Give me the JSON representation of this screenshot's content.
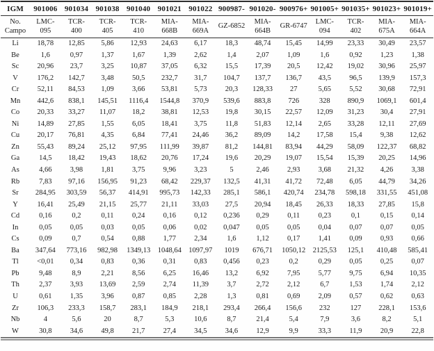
{
  "table": {
    "name": "trace-element-geochemistry-table",
    "header_row_igm": [
      "IGM",
      "901006",
      "901034",
      "901038",
      "901040",
      "901021",
      "901022",
      "900987-",
      "901020-",
      "900976+",
      "901005+",
      "901035+",
      "901023+",
      "901019+"
    ],
    "header_row_campo": [
      "No.\nCampo",
      "LMC-\n095",
      "TCR-\n400",
      "TCR-\n405",
      "TCR-\n410",
      "MIA-\n668B",
      "MIA-\n669A",
      "GZ-6852",
      "MIA-\n664B",
      "GR-6747",
      "LMC-\n094",
      "TCR-\n402",
      "MIA-\n675A",
      "MIA-\n664A"
    ],
    "rows": [
      {
        "element": "Li",
        "values": [
          "18,78",
          "12,85",
          "5,86",
          "12,93",
          "24,63",
          "6,17",
          "18,3",
          "48,74",
          "15,45",
          "14,99",
          "23,33",
          "30,49",
          "23,57"
        ]
      },
      {
        "element": "Be",
        "values": [
          "1,6",
          "0,97",
          "1,37",
          "1,67",
          "1,39",
          "2,62",
          "1,4",
          "2,07",
          "1,09",
          "1,6",
          "0,92",
          "1,23",
          "1,38"
        ]
      },
      {
        "element": "Sc",
        "values": [
          "20,96",
          "23,7",
          "3,25",
          "10,87",
          "37,05",
          "6,32",
          "15,5",
          "17,39",
          "20,5",
          "12,42",
          "19,02",
          "30,96",
          "25,97"
        ]
      },
      {
        "element": "V",
        "values": [
          "176,2",
          "142,7",
          "3,48",
          "50,5",
          "232,7",
          "31,7",
          "104,7",
          "137,7",
          "136,7",
          "43,5",
          "96,5",
          "139,9",
          "157,3"
        ]
      },
      {
        "element": "Cr",
        "values": [
          "52,11",
          "84,53",
          "1,09",
          "3,66",
          "53,81",
          "5,73",
          "20,3",
          "128,33",
          "27",
          "5,65",
          "5,52",
          "30,68",
          "72,91"
        ]
      },
      {
        "element": "Mn",
        "values": [
          "442,6",
          "838,1",
          "145,51",
          "1116,4",
          "1544,8",
          "370,9",
          "539,6",
          "883,8",
          "726",
          "328",
          "890,9",
          "1069,1",
          "601,4"
        ]
      },
      {
        "element": "Co",
        "values": [
          "20,33",
          "33,27",
          "11,07",
          "18,2",
          "38,81",
          "12,53",
          "19,8",
          "30,15",
          "22,57",
          "12,09",
          "31,23",
          "30,4",
          "27,91"
        ]
      },
      {
        "element": "Ni",
        "values": [
          "14,89",
          "27,85",
          "1,55",
          "6,05",
          "18,41",
          "3,75",
          "11,8",
          "51,83",
          "12,14",
          "2,65",
          "33,28",
          "12,11",
          "27,69"
        ]
      },
      {
        "element": "Cu",
        "values": [
          "20,17",
          "76,81",
          "4,35",
          "6,84",
          "77,41",
          "24,46",
          "36,2",
          "89,09",
          "14,2",
          "17,58",
          "15,4",
          "9,38",
          "12,62"
        ]
      },
      {
        "element": "Zn",
        "values": [
          "55,43",
          "89,24",
          "25,12",
          "97,95",
          "111,99",
          "39,87",
          "81,2",
          "144,81",
          "83,94",
          "44,29",
          "58,09",
          "122,37",
          "68,82"
        ]
      },
      {
        "element": "Ga",
        "values": [
          "14,5",
          "18,42",
          "19,43",
          "18,62",
          "20,76",
          "17,24",
          "19,6",
          "20,29",
          "19,07",
          "15,54",
          "15,39",
          "20,25",
          "14,96"
        ]
      },
      {
        "element": "As",
        "values": [
          "4,66",
          "3,98",
          "1,81",
          "3,75",
          "9,96",
          "3,23",
          "5",
          "2,46",
          "2,93",
          "3,68",
          "21,32",
          "4,26",
          "3,38"
        ]
      },
      {
        "element": "Rb",
        "values": [
          "7,83",
          "97,16",
          "156,95",
          "91,23",
          "68,42",
          "229,37",
          "132,5",
          "41,31",
          "41,72",
          "72,48",
          "6,05",
          "44,79",
          "34,26"
        ]
      },
      {
        "element": "Sr",
        "values": [
          "284,95",
          "303,59",
          "56,37",
          "414,91",
          "995,73",
          "142,33",
          "285,1",
          "586,1",
          "420,74",
          "234,78",
          "598,18",
          "331,55",
          "451,08"
        ]
      },
      {
        "element": "Y",
        "values": [
          "16,41",
          "25,49",
          "21,15",
          "25,77",
          "21,11",
          "33,03",
          "27,5",
          "20,94",
          "18,45",
          "26,33",
          "18,33",
          "27,85",
          "15,8"
        ]
      },
      {
        "element": "Cd",
        "values": [
          "0,16",
          "0,2",
          "0,11",
          "0,24",
          "0,16",
          "0,12",
          "0,236",
          "0,29",
          "0,11",
          "0,23",
          "0,1",
          "0,15",
          "0,14"
        ]
      },
      {
        "element": "In",
        "values": [
          "0,05",
          "0,05",
          "0,03",
          "0,05",
          "0,06",
          "0,02",
          "0,047",
          "0,05",
          "0,05",
          "0,04",
          "0,07",
          "0,07",
          "0,05"
        ]
      },
      {
        "element": "Cs",
        "values": [
          "0,09",
          "0,7",
          "0,54",
          "0,88",
          "1,77",
          "2,34",
          "1,6",
          "1,12",
          "0,17",
          "1,41",
          "0,09",
          "0,93",
          "0,66"
        ]
      },
      {
        "element": "Ba",
        "values": [
          "347,64",
          "773,16",
          "982,98",
          "1349,13",
          "1048,64",
          "1097,97",
          "1019",
          "676,71",
          "1050,12",
          "2125,53",
          "125,1",
          "410,48",
          "585,41"
        ]
      },
      {
        "element": "Tl",
        "values": [
          "<0,01",
          "0,34",
          "0,83",
          "0,36",
          "0,31",
          "0,83",
          "0,456",
          "0,23",
          "0,2",
          "0,29",
          "0,05",
          "0,25",
          "0,07"
        ]
      },
      {
        "element": "Pb",
        "values": [
          "9,48",
          "8,9",
          "2,21",
          "8,56",
          "6,25",
          "16,46",
          "13,2",
          "6,92",
          "7,95",
          "5,77",
          "9,75",
          "6,94",
          "10,35"
        ]
      },
      {
        "element": "Th",
        "values": [
          "2,37",
          "3,93",
          "13,69",
          "2,59",
          "2,74",
          "11,39",
          "3,7",
          "2,72",
          "2,12",
          "6,7",
          "1,53",
          "1,74",
          "2,12"
        ]
      },
      {
        "element": "U",
        "values": [
          "0,61",
          "1,35",
          "3,96",
          "0,87",
          "0,85",
          "2,28",
          "1,3",
          "0,81",
          "0,69",
          "2,09",
          "0,57",
          "0,62",
          "0,63"
        ]
      },
      {
        "element": "Zr",
        "values": [
          "106,3",
          "233,3",
          "158,7",
          "283,1",
          "184,9",
          "218,1",
          "293,4",
          "266,4",
          "156,6",
          "232",
          "127",
          "228,1",
          "153,6"
        ]
      },
      {
        "element": "Nb",
        "values": [
          "4",
          "5,6",
          "20",
          "8,7",
          "5,3",
          "10,6",
          "8,7",
          "21,4",
          "5,4",
          "7,9",
          "3,6",
          "8,2",
          "5,1"
        ]
      },
      {
        "element": "W",
        "values": [
          "30,8",
          "34,6",
          "49,8",
          "21,7",
          "27,4",
          "34,5",
          "34,6",
          "12,9",
          "9,9",
          "33,3",
          "11,9",
          "20,9",
          "22,8"
        ]
      }
    ]
  }
}
